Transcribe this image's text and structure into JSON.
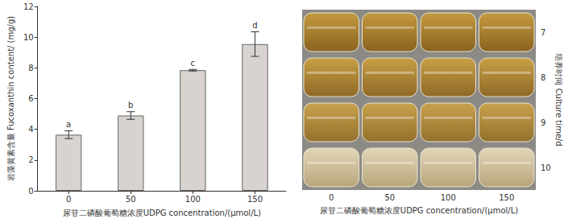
{
  "chart_data": {
    "type": "bar",
    "categories": [
      "0",
      "50",
      "100",
      "150"
    ],
    "values": [
      3.65,
      4.9,
      7.85,
      9.55
    ],
    "errors": [
      0.25,
      0.25,
      0.05,
      0.8
    ],
    "annotations": [
      "a",
      "b",
      "c",
      "d"
    ],
    "color": "#d8d3cf",
    "x_label": "尿苷二磷酸葡萄糖浓度UDPG concentration/(μmol/L)",
    "y_label": "岩藻黄素含量 Fucoxanthin content/ (mg/g)",
    "ylim": [
      0,
      12
    ],
    "yticks": [
      0,
      2,
      4,
      6,
      8,
      10,
      12
    ],
    "grid": false
  },
  "photo_panel": {
    "rows": [
      7,
      8,
      9,
      10
    ],
    "columns": [
      0,
      50,
      100,
      150
    ],
    "row_axis_label": "培养时间 Culture time/d",
    "column_axis_label": "尿苷二磷酸葡萄糖浓度UDPG concentration/(μmol/L)"
  }
}
